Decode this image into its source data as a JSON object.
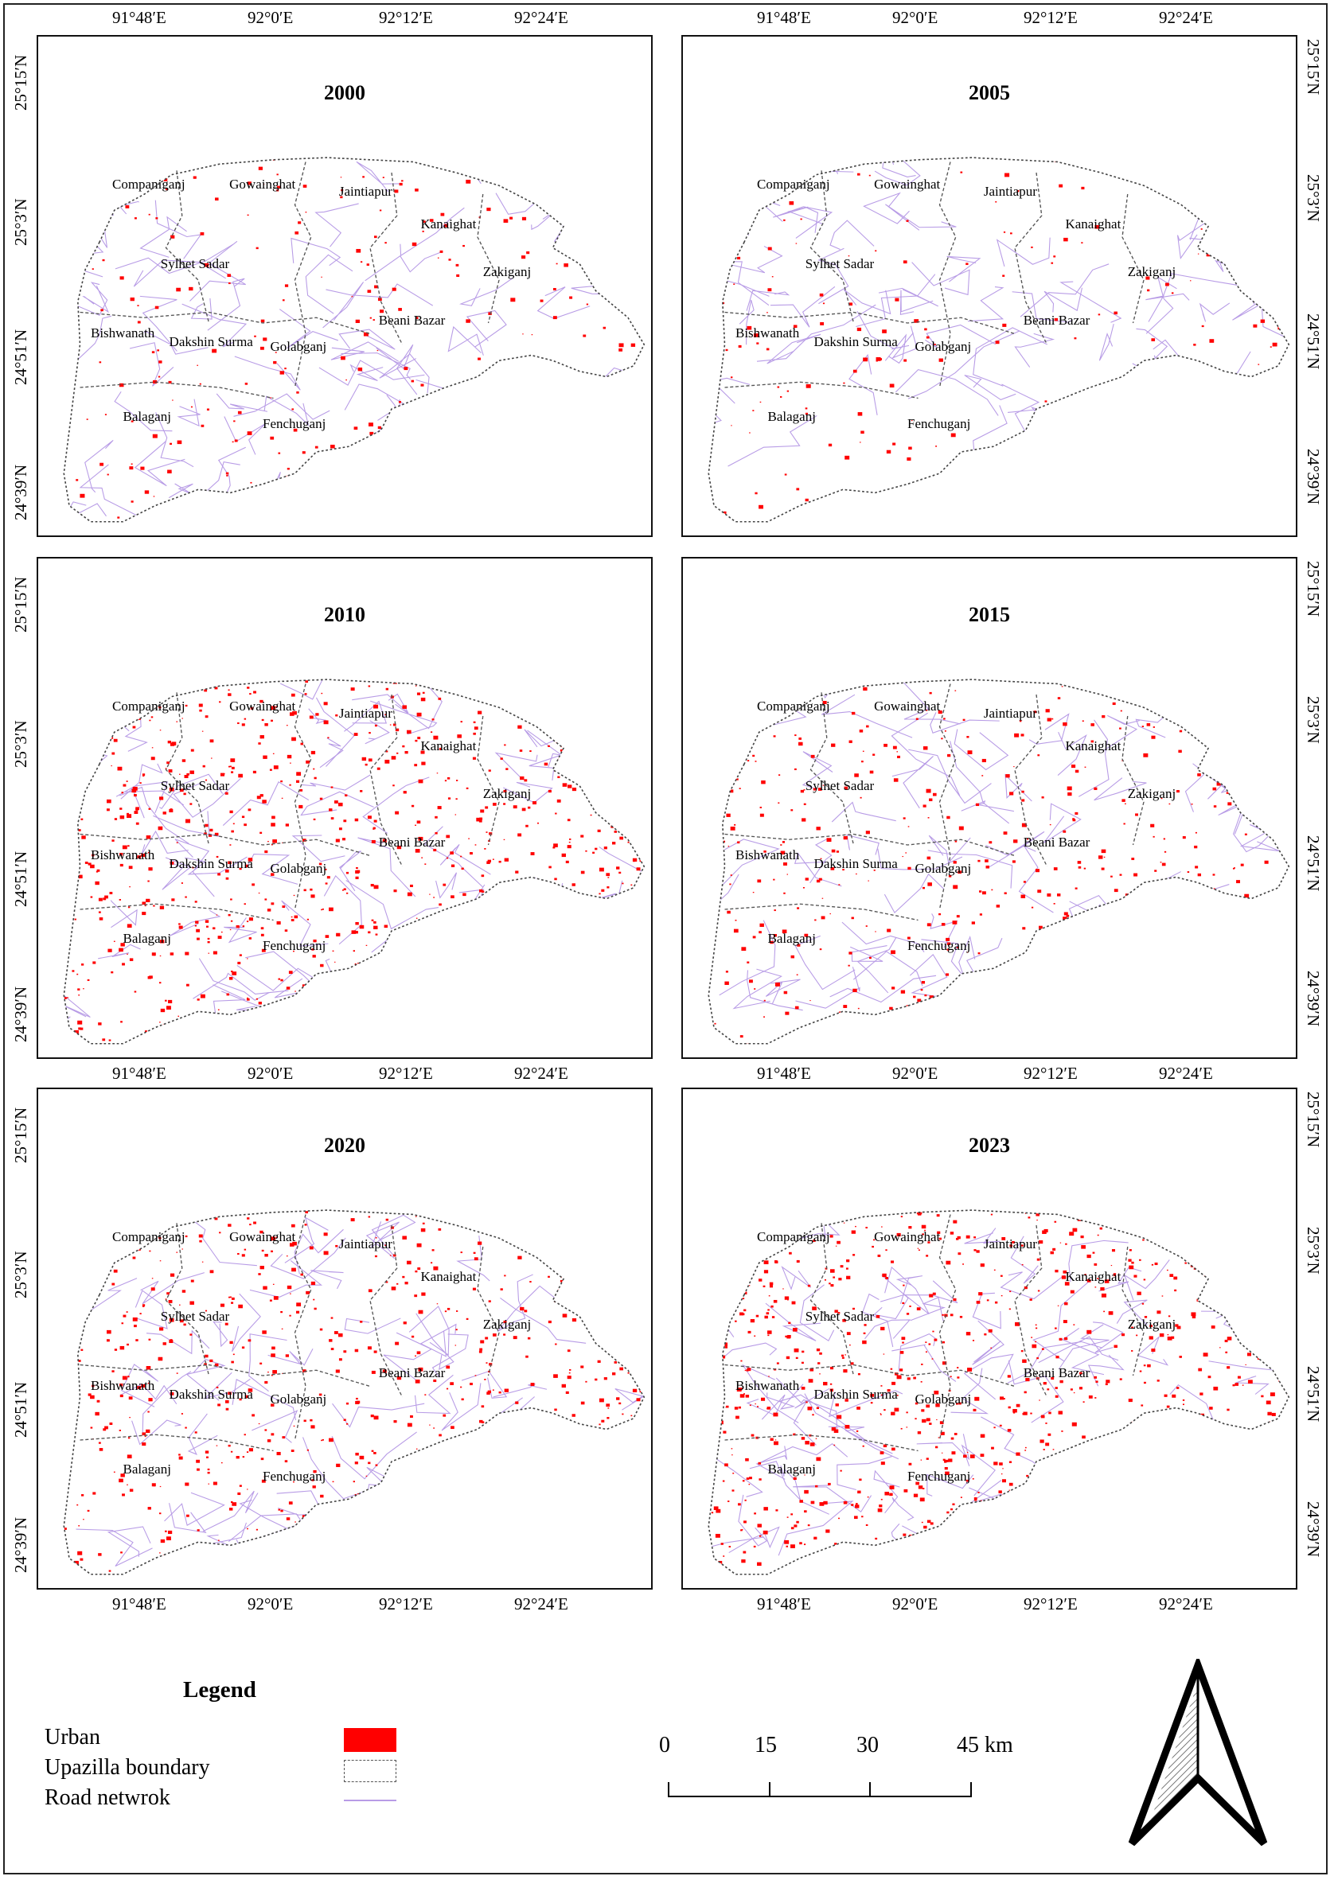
{
  "panels": [
    {
      "year": "2000",
      "urban_density": 0.25
    },
    {
      "year": "2005",
      "urban_density": 0.12
    },
    {
      "year": "2010",
      "urban_density": 0.95
    },
    {
      "year": "2015",
      "urban_density": 0.45
    },
    {
      "year": "2020",
      "urban_density": 0.7
    },
    {
      "year": "2023",
      "urban_density": 1.0
    }
  ],
  "upazilas": [
    "Companiganj",
    "Gowainghat",
    "Jaintiapur",
    "Kanaighat",
    "Zakiganj",
    "Sylhet Sadar",
    "Beani Bazar",
    "Bishwanath",
    "Dakshin Surma",
    "Golabganj",
    "Balaganj",
    "Fenchuganj"
  ],
  "lon_ticks": [
    "91°48′E",
    "92°0′E",
    "92°12′E",
    "92°24′E"
  ],
  "lat_ticks": [
    "25°15′N",
    "25°3′N",
    "24°51′N",
    "24°39′N"
  ],
  "legend": {
    "title": "Legend",
    "items": [
      {
        "label": "Urban",
        "color": "#ff0000"
      },
      {
        "label": "Upazilla boundary",
        "color": "#555555"
      },
      {
        "label": "Road netwrok",
        "color": "#b89ce6"
      }
    ]
  },
  "scale_bar": {
    "labels": [
      "0",
      "15",
      "30",
      "45 km"
    ]
  }
}
